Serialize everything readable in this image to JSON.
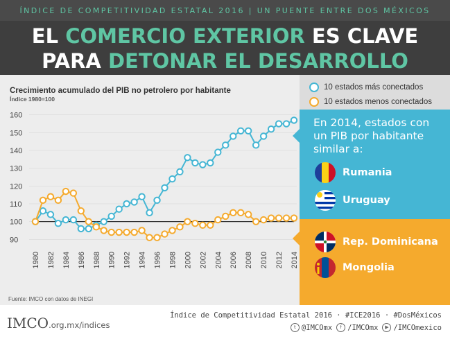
{
  "header": {
    "topline": "ÍNDICE DE COMPETITIVIDAD ESTATAL 2016   |   UN PUENTE ENTRE DOS MÉXICOS",
    "title_line1_part1": "EL ",
    "title_line1_part2": "COMERCIO EXTERIOR",
    "title_line1_part3": " ES CLAVE",
    "title_line2_part1": "PARA ",
    "title_line2_part2": "DETONAR EL DESARROLLO"
  },
  "colors": {
    "blue": "#45b6d4",
    "orange": "#f5aa2d",
    "green": "#5fc6a4",
    "dark": "#3e3e3e"
  },
  "legend": {
    "item1": "10 estados más conectados",
    "item2": "10 estados menos conectados"
  },
  "blue_box": {
    "title": "En 2014, estados con un PIB por habitante similar a:",
    "countries": [
      "Rumania",
      "Uruguay"
    ]
  },
  "orange_box": {
    "countries": [
      "Rep. Dominicana",
      "Mongolia"
    ]
  },
  "chart_data": {
    "type": "line",
    "title": "Crecimiento acumulado del PIB no petrolero por habitante",
    "subtitle": "Índice 1980=100",
    "source": "Fuente: IMCO con datos de INEGI",
    "x": [
      1980,
      1981,
      1982,
      1983,
      1984,
      1985,
      1986,
      1987,
      1988,
      1989,
      1990,
      1991,
      1992,
      1993,
      1994,
      1995,
      1996,
      1997,
      1998,
      1999,
      2000,
      2001,
      2002,
      2003,
      2004,
      2005,
      2006,
      2007,
      2008,
      2009,
      2010,
      2011,
      2012,
      2013,
      2014
    ],
    "xticks": [
      "1980",
      "1982",
      "1984",
      "1986",
      "1988",
      "1990",
      "1992",
      "1994",
      "1996",
      "1998",
      "2000",
      "2002",
      "2004",
      "2006",
      "2008",
      "2010",
      "2012",
      "2014"
    ],
    "yticks": [
      "90",
      "100",
      "110",
      "120",
      "130",
      "140",
      "150",
      "160"
    ],
    "ylim": [
      87,
      163
    ],
    "reference_line": 100,
    "series": [
      {
        "name": "10 estados más conectados",
        "color": "#45b6d4",
        "values": [
          100,
          106,
          104,
          99,
          101,
          101,
          96,
          96,
          98,
          100,
          103,
          107,
          110,
          111,
          114,
          105,
          112,
          119,
          124,
          128,
          136,
          133,
          132,
          133,
          139,
          143,
          148,
          151,
          151,
          143,
          148,
          152,
          155,
          155,
          157
        ]
      },
      {
        "name": "10 estados menos conectados",
        "color": "#f5aa2d",
        "values": [
          100,
          112,
          114,
          112,
          117,
          116,
          106,
          100,
          97,
          95,
          94,
          94,
          94,
          94,
          95,
          91,
          91,
          93,
          95,
          97,
          100,
          99,
          98,
          98,
          101,
          103,
          105,
          105,
          104,
          100,
          101,
          102,
          102,
          102,
          102
        ]
      }
    ]
  },
  "footer": {
    "logo": "IMCO",
    "url": ".org.mx/indices",
    "line1": "Índice de Competitividad Estatal 2016 · #ICE2016 · #DosMéxicos",
    "twitter": "@IMCOmx",
    "facebook": "/IMCOmx",
    "youtube": "/IMCOmexico"
  }
}
